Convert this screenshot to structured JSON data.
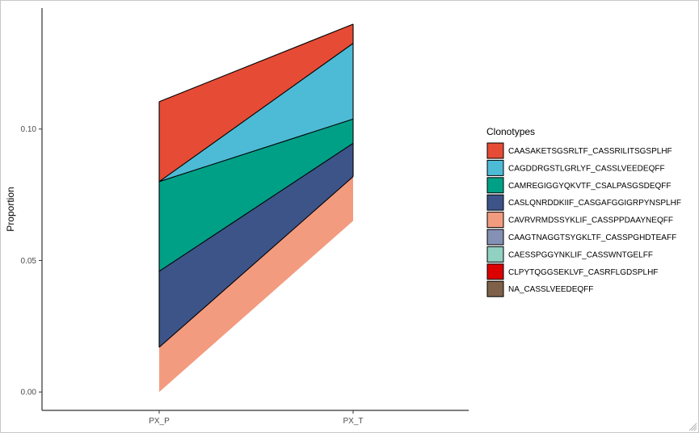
{
  "chart_data": {
    "type": "area",
    "x_categories": [
      "PX_P",
      "PX_T"
    ],
    "ylabel": "Proportion",
    "xlabel": "",
    "ylim": [
      -0.007,
      0.146
    ],
    "y_ticks": [
      0.0,
      0.05,
      0.1
    ],
    "y_tick_labels": [
      "0.00",
      "0.05",
      "0.10"
    ],
    "legend": {
      "title": "Clonotypes",
      "position": "right"
    },
    "series": [
      {
        "name": "CAASAKETSGSRLTF_CASSRILITSGSPLHF",
        "color": "#E64B35",
        "values": [
          0.0304,
          0.0073
        ]
      },
      {
        "name": "CAGDDRGSTLGRLYF_CASSLVEEDEQFF",
        "color": "#4DBBD5",
        "values": [
          0.0,
          0.0288
        ]
      },
      {
        "name": "CAMREGIGGYQKVTF_CSALPASGSDEQFF",
        "color": "#00A087",
        "values": [
          0.0341,
          0.0092
        ]
      },
      {
        "name": "CASLQNRDDKIIF_CASGAFGGIGRPYNSPLHF",
        "color": "#3C5488",
        "values": [
          0.0289,
          0.0127
        ]
      },
      {
        "name": "CAVRVRMDSSYKLIF_CASSPPDAAYNEQFF",
        "color": "#F39B7F",
        "values": [
          0.017,
          0.0168
        ]
      },
      {
        "name": "CAAGTNAGGTSYGKLTF_CASSPGHDTEAFF",
        "color": "#8491B4",
        "values": [
          0,
          0
        ]
      },
      {
        "name": "CAESSPGGYNKLIF_CASSWNTGELFF",
        "color": "#91D1C2",
        "values": [
          0,
          0
        ]
      },
      {
        "name": "CLPYTQGGSEKLVF_CASRFLGDSPLHF",
        "color": "#DC0000",
        "values": [
          0,
          0
        ]
      },
      {
        "name": "NA_CASSLVEEDEQFF",
        "color": "#7E6148",
        "values": [
          0,
          0
        ]
      }
    ],
    "baseline": [
      0.0,
      0.0651
    ],
    "grid": false
  }
}
